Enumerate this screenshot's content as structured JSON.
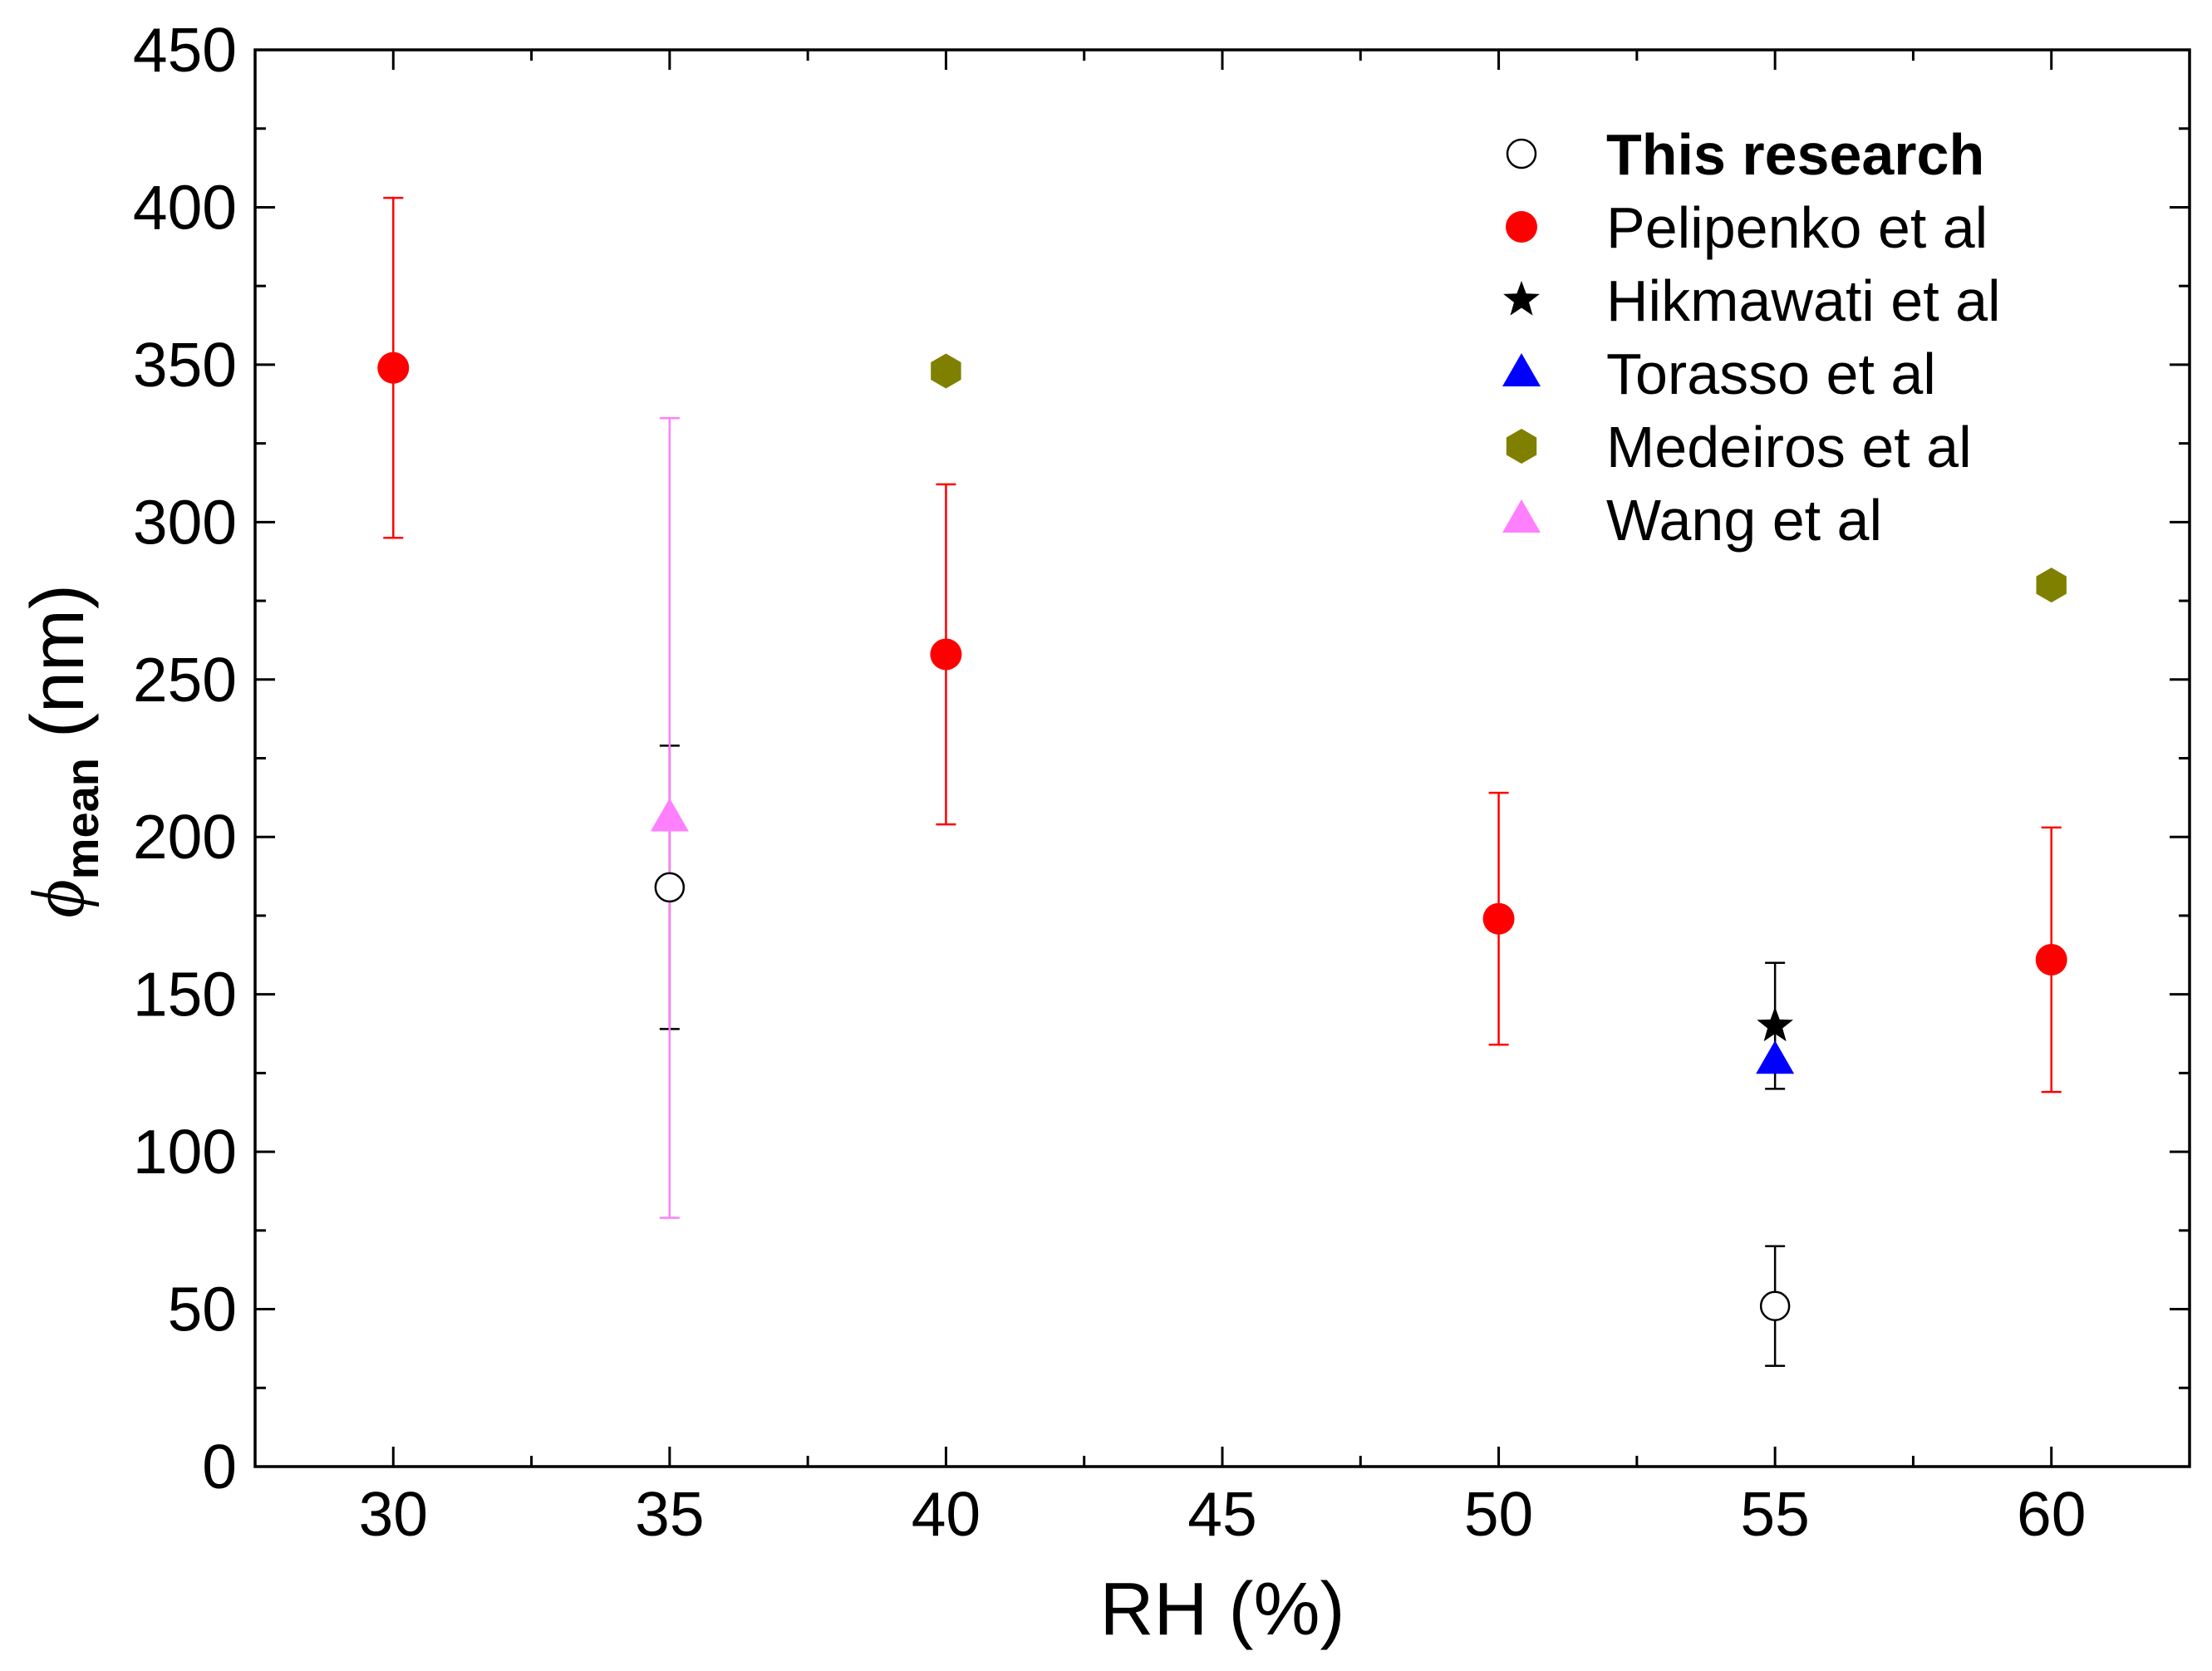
{
  "chart_data": {
    "type": "scatter",
    "title": "",
    "xlabel": "RH (%)",
    "ylabel": {
      "symbol": "ϕ",
      "subscript": "mean",
      "unit": "(nm)"
    },
    "xlim": [
      27.5,
      62.5
    ],
    "ylim": [
      0,
      450
    ],
    "x_ticks": [
      30,
      35,
      40,
      45,
      50,
      55,
      60
    ],
    "x_minor_step": 2.5,
    "y_ticks": [
      0,
      50,
      100,
      150,
      200,
      250,
      300,
      350,
      400,
      450
    ],
    "y_minor_step": 25,
    "grid": false,
    "legend_position": "top-right",
    "series": [
      {
        "name": "This research",
        "marker": "open-circle",
        "color": "#000000",
        "label_bold": true,
        "points": [
          {
            "x": 35,
            "y": 184,
            "err": 45
          },
          {
            "x": 55,
            "y": 51,
            "err": 19
          }
        ]
      },
      {
        "name": "Pelipenko et al",
        "marker": "filled-circle",
        "color": "#ff0000",
        "points": [
          {
            "x": 30,
            "y": 349,
            "err": 54
          },
          {
            "x": 40,
            "y": 258,
            "err": 54
          },
          {
            "x": 50,
            "y": 174,
            "err": 40
          },
          {
            "x": 60,
            "y": 161,
            "err": 42
          }
        ]
      },
      {
        "name": "Hikmawati et al",
        "marker": "star",
        "color": "#000000",
        "points": [
          {
            "x": 55,
            "y": 140,
            "err": 20
          }
        ]
      },
      {
        "name": "Torasso et al",
        "marker": "triangle-up",
        "color": "#0000ff",
        "points": [
          {
            "x": 55,
            "y": 129
          }
        ]
      },
      {
        "name": "Medeiros et al",
        "marker": "hexagon",
        "color": "#808000",
        "points": [
          {
            "x": 40,
            "y": 348
          },
          {
            "x": 60,
            "y": 280
          }
        ]
      },
      {
        "name": "Wang et al",
        "marker": "triangle-up",
        "color": "#ff80ff",
        "points": [
          {
            "x": 35,
            "y": 206,
            "err": 127
          }
        ]
      }
    ]
  }
}
